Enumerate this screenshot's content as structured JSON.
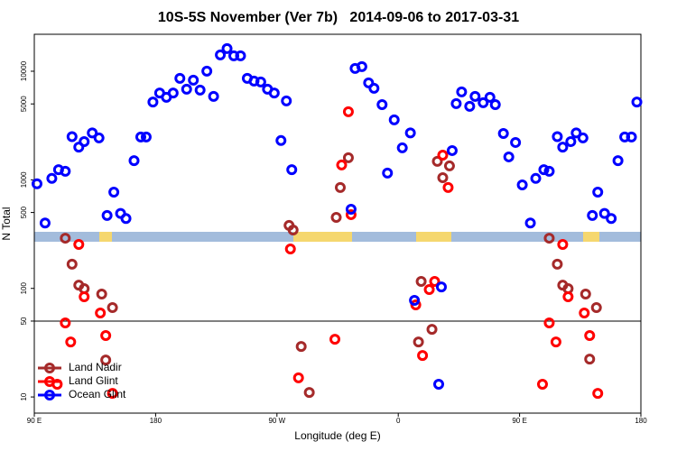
{
  "chart_data": {
    "type": "scatter",
    "title": "10S-5S November (Ver 7b)   2014-09-06 to 2017-03-31",
    "x_label": "Longitude (deg E)",
    "y_label": "N Total",
    "xlim": [
      90,
      540
    ],
    "xticks": [
      {
        "value": 90,
        "label": "90 E"
      },
      180,
      {
        "value": 270,
        "label": "90 W"
      },
      {
        "value": 360,
        "label": "0"
      },
      {
        "value": 450,
        "label": "90 E"
      },
      {
        "value": 540,
        "label": "180"
      }
    ],
    "ylim": [
      7.1,
      21900
    ],
    "yticks": [
      10,
      50,
      100,
      500,
      1000,
      5000,
      10000
    ],
    "log_y": true,
    "reference_line": 50,
    "legend": "bottom-left",
    "series": [
      {
        "name": "Land Nadir",
        "color": "#a52a2a",
        "x": [
          113,
          118,
          123,
          127,
          140,
          148,
          143,
          279,
          282,
          288,
          294,
          314,
          317,
          323,
          377,
          375,
          385,
          389,
          393,
          398,
          472,
          478,
          482,
          486,
          499,
          507,
          502
        ],
        "values": [
          290,
          167,
          107,
          99.5,
          88.7,
          66.5,
          21.9,
          380,
          345,
          29.2,
          11,
          451,
          849,
          1596,
          116,
          32.1,
          42,
          1479,
          1047,
          1343,
          290,
          167,
          107,
          99.5,
          88.7,
          66.5,
          22.3
        ]
      },
      {
        "name": "Land Glint",
        "color": "#ff0000",
        "x": [
          107,
          113,
          117,
          123,
          127,
          139,
          143,
          148,
          280,
          286,
          313,
          318,
          323,
          325,
          373,
          378,
          383,
          387,
          393,
          397,
          467,
          472,
          477,
          482,
          486,
          498,
          502,
          508
        ],
        "values": [
          13.1,
          48.1,
          32.1,
          254,
          83.7,
          59.3,
          36.8,
          10.8,
          231,
          15,
          34,
          1369,
          4236,
          478,
          70.5,
          24.1,
          97.5,
          116,
          1689,
          849,
          13.1,
          48.1,
          32.1,
          254,
          83.7,
          59.3,
          36.8,
          10.8
        ]
      },
      {
        "name": "Ocean Glint",
        "color": "#0000ff",
        "x": [
          92,
          98,
          103,
          108,
          113,
          118,
          123,
          127,
          133,
          138,
          144,
          149,
          154,
          158,
          164,
          169,
          173,
          178,
          183,
          188,
          193,
          198,
          203,
          208,
          213,
          218,
          223,
          228,
          233,
          238,
          243,
          248,
          253,
          258,
          263,
          268,
          273,
          277,
          281,
          325,
          328,
          333,
          338,
          342,
          348,
          352,
          357,
          363,
          369,
          372,
          390,
          392,
          400,
          403,
          407,
          413,
          417,
          423,
          428,
          432,
          438,
          442,
          447,
          452,
          458,
          462,
          468,
          472,
          478,
          482,
          488,
          492,
          497,
          504,
          508,
          513,
          518,
          523,
          528,
          533,
          537
        ],
        "values": [
          920,
          400,
          1030,
          1240,
          1200,
          2500,
          2000,
          2250,
          2700,
          2430,
          470,
          770,
          490,
          440,
          1500,
          2480,
          2480,
          5200,
          6300,
          5750,
          6300,
          8590,
          6840,
          8270,
          6700,
          10020,
          5860,
          14140,
          16170,
          13870,
          13870,
          8590,
          8110,
          7960,
          6840,
          6300,
          2300,
          5330,
          1240,
          536,
          10610,
          11020,
          7810,
          6970,
          4930,
          1153,
          3565,
          1969,
          2700,
          77.5,
          13.1,
          103,
          1859,
          5030,
          6450,
          4750,
          5860,
          5130,
          5750,
          4930,
          2670,
          1626,
          2208,
          898,
          400,
          1030,
          1240,
          1200,
          2500,
          2000,
          2250,
          2700,
          2430,
          470,
          770,
          490,
          440,
          1500,
          2480,
          2480,
          5200
        ]
      }
    ]
  }
}
